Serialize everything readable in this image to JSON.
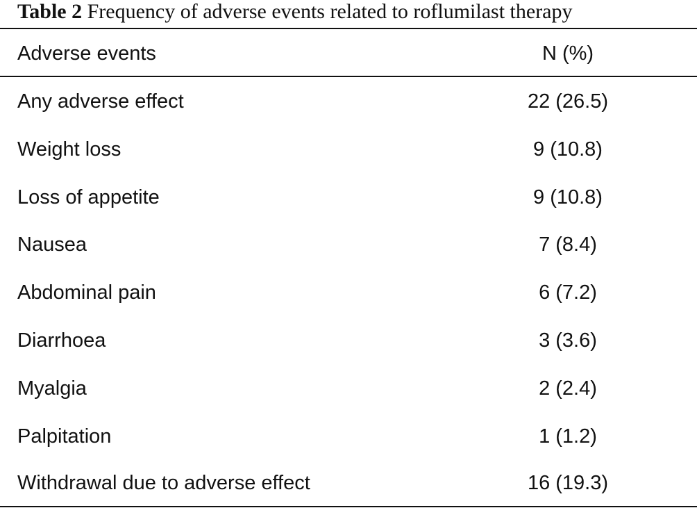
{
  "table": {
    "caption_label": "Table 2",
    "caption_text": "Frequency of adverse events related to roflumilast therapy",
    "headers": [
      "Adverse events",
      "N (%)"
    ],
    "rows": [
      [
        "Any adverse effect",
        "22 (26.5)"
      ],
      [
        "Weight loss",
        "9 (10.8)"
      ],
      [
        "Loss of appetite",
        "9 (10.8)"
      ],
      [
        "Nausea",
        "7 (8.4)"
      ],
      [
        "Abdominal pain",
        "6 (7.2)"
      ],
      [
        "Diarrhoea",
        "3 (3.6)"
      ],
      [
        "Myalgia",
        "2 (2.4)"
      ],
      [
        "Palpitation",
        "1 (1.2)"
      ],
      [
        "Withdrawal due to adverse effect",
        "16 (19.3)"
      ]
    ]
  }
}
